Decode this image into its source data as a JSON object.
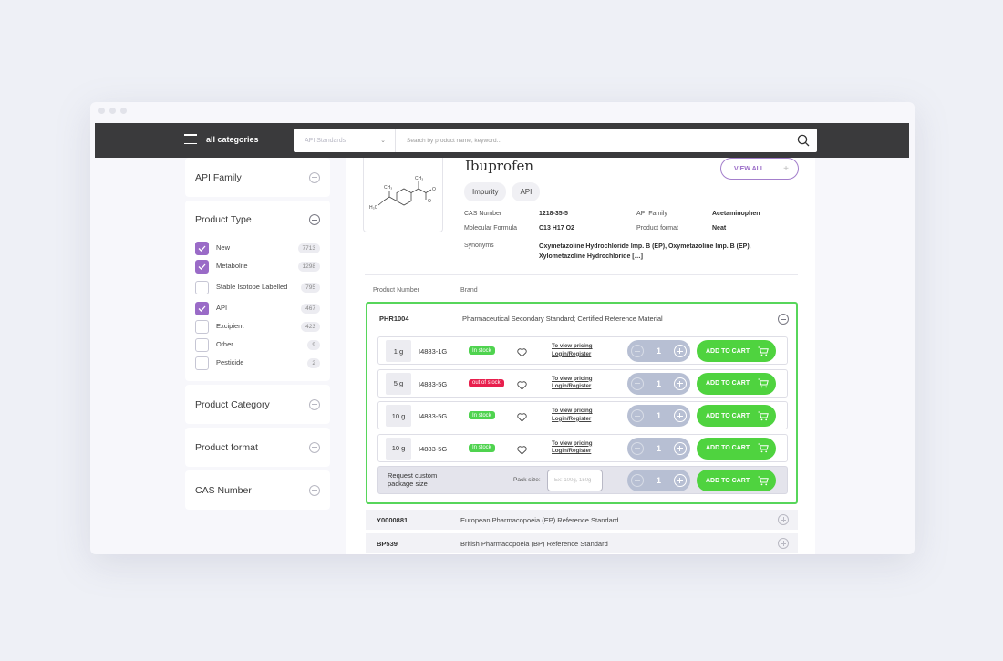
{
  "header": {
    "menu_label": "all categories",
    "category_select": "API Standards",
    "search_placeholder": "Search by product name, keyword..."
  },
  "sidebar": {
    "api_family": "API Family",
    "product_type": {
      "title": "Product Type",
      "options": [
        {
          "label": "New",
          "count": "7713",
          "checked": true
        },
        {
          "label": "Metabolite",
          "count": "1298",
          "checked": true
        },
        {
          "label": "Stable Isotope Labelled",
          "count": "795",
          "checked": false
        },
        {
          "label": "API",
          "count": "467",
          "checked": true
        },
        {
          "label": "Excipient",
          "count": "423",
          "checked": false
        },
        {
          "label": "Other",
          "count": "9",
          "checked": false
        },
        {
          "label": "Pesticide",
          "count": "2",
          "checked": false
        }
      ]
    },
    "product_category": "Product Category",
    "product_format": "Product format",
    "cas_number": "CAS Number"
  },
  "product": {
    "name": "Ibuprofen",
    "tags": [
      "Impurity",
      "API"
    ],
    "view_all": "VIEW ALL",
    "properties": {
      "cas_label": "CAS Number",
      "cas_value": "1218-35-5",
      "formula_label": "Molecular Formula",
      "formula_value": "C13 H17 O2",
      "family_label": "API Family",
      "family_value": "Acetaminophen",
      "format_label": "Product format",
      "format_value": "Neat",
      "synonyms_label": "Synonyms",
      "synonyms_value": "Oxymetazoline Hydrochloride Imp. B (EP), Oxymetazoline Imp. B (EP), Xylometazoline Hydrochloride […]"
    },
    "structure_labels": {
      "ch3_top": "CH₃",
      "ch3_left": "CH₃",
      "h3c": "H₃C",
      "o": "O"
    }
  },
  "table": {
    "col_product_number": "Product Number",
    "col_brand": "Brand",
    "expanded": {
      "number": "PHR1004",
      "brand": "Pharmaceutical Secondary Standard; Certified Reference Material",
      "variants": [
        {
          "size": "1 g",
          "sku": "I4883-1G",
          "stock": "In stock",
          "in_stock": true,
          "pricing1": "To view pricing",
          "pricing2": "Login/Register",
          "qty": "1",
          "add": "ADD TO CART"
        },
        {
          "size": "5 g",
          "sku": "I4883-5G",
          "stock": "out of stock",
          "in_stock": false,
          "pricing1": "To view pricing",
          "pricing2": "Login/Register",
          "qty": "1",
          "add": "ADD TO CART"
        },
        {
          "size": "10 g",
          "sku": "I4883-5G",
          "stock": "In stock",
          "in_stock": true,
          "pricing1": "To view pricing",
          "pricing2": "Login/Register",
          "qty": "1",
          "add": "ADD TO CART"
        },
        {
          "size": "10 g",
          "sku": "I4883-5G",
          "stock": "In stock",
          "in_stock": true,
          "pricing1": "To view pricing",
          "pricing2": "Login/Register",
          "qty": "1",
          "add": "ADD TO CART"
        }
      ],
      "custom": {
        "label": "Request custom package size",
        "pack_label": "Pack size:",
        "pack_placeholder": "Ex: 100g, 150g",
        "qty": "1",
        "add": "ADD TO CART"
      }
    },
    "collapsed": [
      {
        "number": "Y0000881",
        "brand": "European Pharmacopoeia (EP) Reference Standard"
      },
      {
        "number": "BP539",
        "brand": "British Pharmacopoeia (BP) Reference Standard"
      }
    ]
  },
  "colors": {
    "accent_purple": "#9a6bc7",
    "green": "#4fd33f",
    "red": "#e81f4d",
    "topbar": "#3a3a3c"
  }
}
